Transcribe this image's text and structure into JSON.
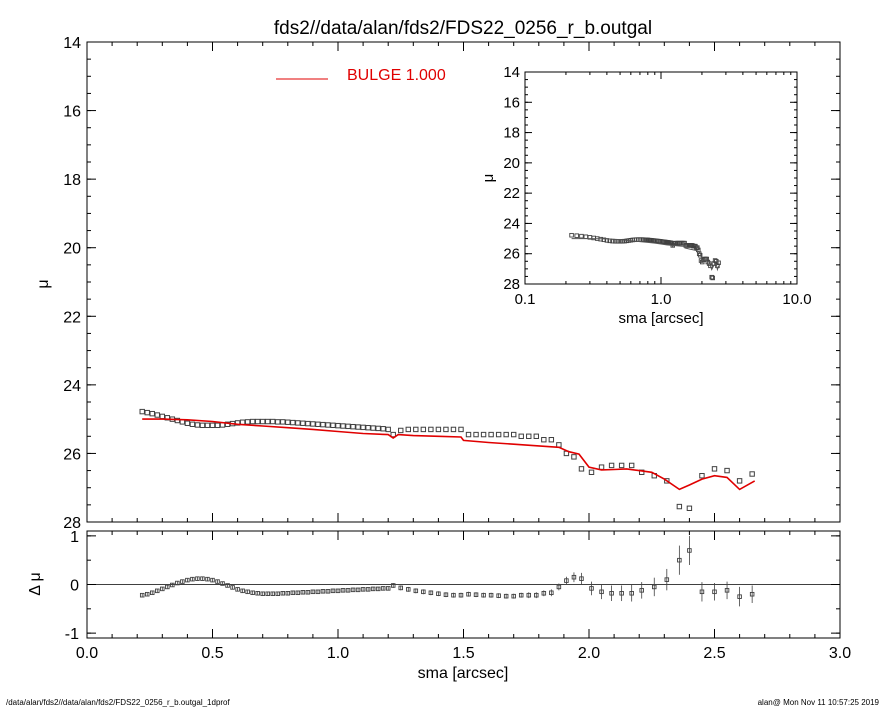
{
  "title": "fds2//data/alan/fds2/FDS22_0256_r_b.outgal",
  "footer": {
    "left": "/data/alan/fds2//data/alan/fds2/FDS22_0256_r_b.outgal_1dprof",
    "right": "alan@  Mon Nov 11 10:57:25 2019"
  },
  "colors": {
    "model": "#e00000",
    "data": "#404040",
    "axes": "#000000"
  },
  "chart_data": [
    {
      "id": "main",
      "type": "scatter",
      "ylabel": "μ",
      "xlim": [
        0.0,
        3.0
      ],
      "ylim": [
        28,
        14
      ],
      "yticks": [
        "14",
        "16",
        "18",
        "20",
        "22",
        "24",
        "26",
        "28"
      ],
      "legend": {
        "label": "BULGE  1.000",
        "placement": "top-center"
      },
      "data_x": [
        0.22,
        0.24,
        0.26,
        0.28,
        0.3,
        0.32,
        0.34,
        0.36,
        0.38,
        0.4,
        0.42,
        0.44,
        0.46,
        0.48,
        0.5,
        0.52,
        0.54,
        0.56,
        0.58,
        0.6,
        0.62,
        0.64,
        0.66,
        0.68,
        0.7,
        0.72,
        0.74,
        0.76,
        0.78,
        0.8,
        0.82,
        0.84,
        0.86,
        0.88,
        0.9,
        0.92,
        0.94,
        0.96,
        0.98,
        1.0,
        1.02,
        1.04,
        1.06,
        1.08,
        1.1,
        1.12,
        1.14,
        1.16,
        1.18,
        1.2,
        1.22,
        1.25,
        1.28,
        1.31,
        1.34,
        1.37,
        1.4,
        1.43,
        1.46,
        1.49,
        1.52,
        1.55,
        1.58,
        1.61,
        1.64,
        1.67,
        1.7,
        1.73,
        1.76,
        1.79,
        1.82,
        1.85,
        1.88,
        1.91,
        1.94,
        1.97,
        2.01,
        2.05,
        2.09,
        2.13,
        2.17,
        2.21,
        2.26,
        2.31,
        2.36,
        2.4,
        2.45,
        2.5,
        2.55,
        2.6,
        2.65
      ],
      "data_y": [
        24.78,
        24.81,
        24.84,
        24.88,
        24.92,
        24.96,
        25.0,
        25.04,
        25.08,
        25.12,
        25.15,
        25.17,
        25.18,
        25.18,
        25.18,
        25.18,
        25.17,
        25.15,
        25.13,
        25.11,
        25.09,
        25.08,
        25.07,
        25.07,
        25.07,
        25.07,
        25.07,
        25.08,
        25.08,
        25.09,
        25.1,
        25.11,
        25.12,
        25.13,
        25.14,
        25.15,
        25.16,
        25.17,
        25.18,
        25.19,
        25.2,
        25.21,
        25.22,
        25.23,
        25.24,
        25.25,
        25.26,
        25.27,
        25.28,
        25.3,
        25.45,
        25.33,
        25.3,
        25.3,
        25.3,
        25.3,
        25.3,
        25.3,
        25.3,
        25.3,
        25.45,
        25.45,
        25.45,
        25.45,
        25.45,
        25.45,
        25.45,
        25.5,
        25.5,
        25.5,
        25.6,
        25.6,
        25.75,
        26.0,
        26.1,
        26.45,
        26.55,
        26.4,
        26.35,
        26.35,
        26.35,
        26.55,
        26.65,
        26.8,
        27.55,
        27.6,
        26.65,
        26.45,
        26.5,
        26.8,
        26.6
      ],
      "model_x": [
        0.22,
        0.3,
        0.4,
        0.5,
        0.6,
        0.7,
        0.8,
        0.9,
        1.0,
        1.1,
        1.2,
        1.22,
        1.24,
        1.3,
        1.4,
        1.49,
        1.5,
        1.6,
        1.7,
        1.8,
        1.88,
        1.92,
        1.96,
        2.0,
        2.05,
        2.1,
        2.15,
        2.2,
        2.25,
        2.3,
        2.36,
        2.4,
        2.45,
        2.5,
        2.55,
        2.6,
        2.66
      ],
      "model_y": [
        25.0,
        25.0,
        25.02,
        25.07,
        25.15,
        25.2,
        25.25,
        25.3,
        25.36,
        25.42,
        25.45,
        25.55,
        25.45,
        25.48,
        25.5,
        25.52,
        25.62,
        25.68,
        25.73,
        25.78,
        25.82,
        25.95,
        26.02,
        26.4,
        26.48,
        26.47,
        26.45,
        26.5,
        26.55,
        26.75,
        27.05,
        26.92,
        26.75,
        26.65,
        26.7,
        27.05,
        26.8
      ]
    },
    {
      "id": "residual",
      "type": "scatter",
      "ylabel": "Δ μ",
      "xlabel": "sma [arcsec]",
      "xlim": [
        0.0,
        3.0
      ],
      "ylim": [
        -1.1,
        1.1
      ],
      "xticks": [
        "0.0",
        "0.5",
        "1.0",
        "1.5",
        "2.0",
        "2.5",
        "3.0"
      ],
      "yticks": [
        "-1",
        "0",
        "1"
      ],
      "delta_y": [
        -0.22,
        -0.2,
        -0.17,
        -0.13,
        -0.09,
        -0.05,
        -0.01,
        0.03,
        0.06,
        0.09,
        0.11,
        0.12,
        0.12,
        0.11,
        0.09,
        0.06,
        0.02,
        -0.02,
        -0.06,
        -0.1,
        -0.13,
        -0.15,
        -0.17,
        -0.18,
        -0.19,
        -0.19,
        -0.19,
        -0.19,
        -0.18,
        -0.18,
        -0.17,
        -0.17,
        -0.16,
        -0.16,
        -0.15,
        -0.15,
        -0.14,
        -0.14,
        -0.13,
        -0.13,
        -0.12,
        -0.12,
        -0.11,
        -0.11,
        -0.1,
        -0.1,
        -0.09,
        -0.09,
        -0.08,
        -0.08,
        -0.02,
        -0.07,
        -0.1,
        -0.13,
        -0.15,
        -0.17,
        -0.19,
        -0.21,
        -0.22,
        -0.22,
        -0.2,
        -0.21,
        -0.22,
        -0.22,
        -0.23,
        -0.24,
        -0.24,
        -0.22,
        -0.22,
        -0.22,
        -0.18,
        -0.17,
        -0.05,
        0.08,
        0.15,
        0.12,
        -0.08,
        -0.15,
        -0.18,
        -0.18,
        -0.18,
        -0.12,
        -0.05,
        0.1,
        0.5,
        0.7,
        -0.15,
        -0.15,
        -0.12,
        -0.25,
        -0.2
      ],
      "err": [
        0.03,
        0.03,
        0.03,
        0.03,
        0.03,
        0.03,
        0.03,
        0.03,
        0.03,
        0.03,
        0.04,
        0.04,
        0.04,
        0.04,
        0.04,
        0.04,
        0.04,
        0.04,
        0.04,
        0.04,
        0.04,
        0.04,
        0.04,
        0.04,
        0.04,
        0.04,
        0.04,
        0.04,
        0.04,
        0.04,
        0.04,
        0.04,
        0.04,
        0.04,
        0.04,
        0.04,
        0.04,
        0.04,
        0.04,
        0.04,
        0.04,
        0.04,
        0.04,
        0.04,
        0.04,
        0.04,
        0.04,
        0.04,
        0.04,
        0.04,
        0.05,
        0.05,
        0.05,
        0.05,
        0.05,
        0.05,
        0.05,
        0.05,
        0.05,
        0.05,
        0.05,
        0.05,
        0.05,
        0.05,
        0.05,
        0.05,
        0.05,
        0.05,
        0.06,
        0.06,
        0.06,
        0.07,
        0.07,
        0.08,
        0.1,
        0.12,
        0.14,
        0.15,
        0.16,
        0.16,
        0.17,
        0.17,
        0.19,
        0.22,
        0.3,
        0.3,
        0.2,
        0.18,
        0.18,
        0.2,
        0.18
      ]
    },
    {
      "id": "inset",
      "type": "line",
      "ylabel": "μ",
      "xlabel": "sma [arcsec]",
      "xscale": "log",
      "xlim": [
        0.1,
        10.0
      ],
      "ylim": [
        28,
        14
      ],
      "xticks": [
        "0.1",
        "1.0",
        "10.0"
      ],
      "yticks": [
        "14",
        "16",
        "18",
        "20",
        "22",
        "24",
        "26",
        "28"
      ]
    }
  ]
}
